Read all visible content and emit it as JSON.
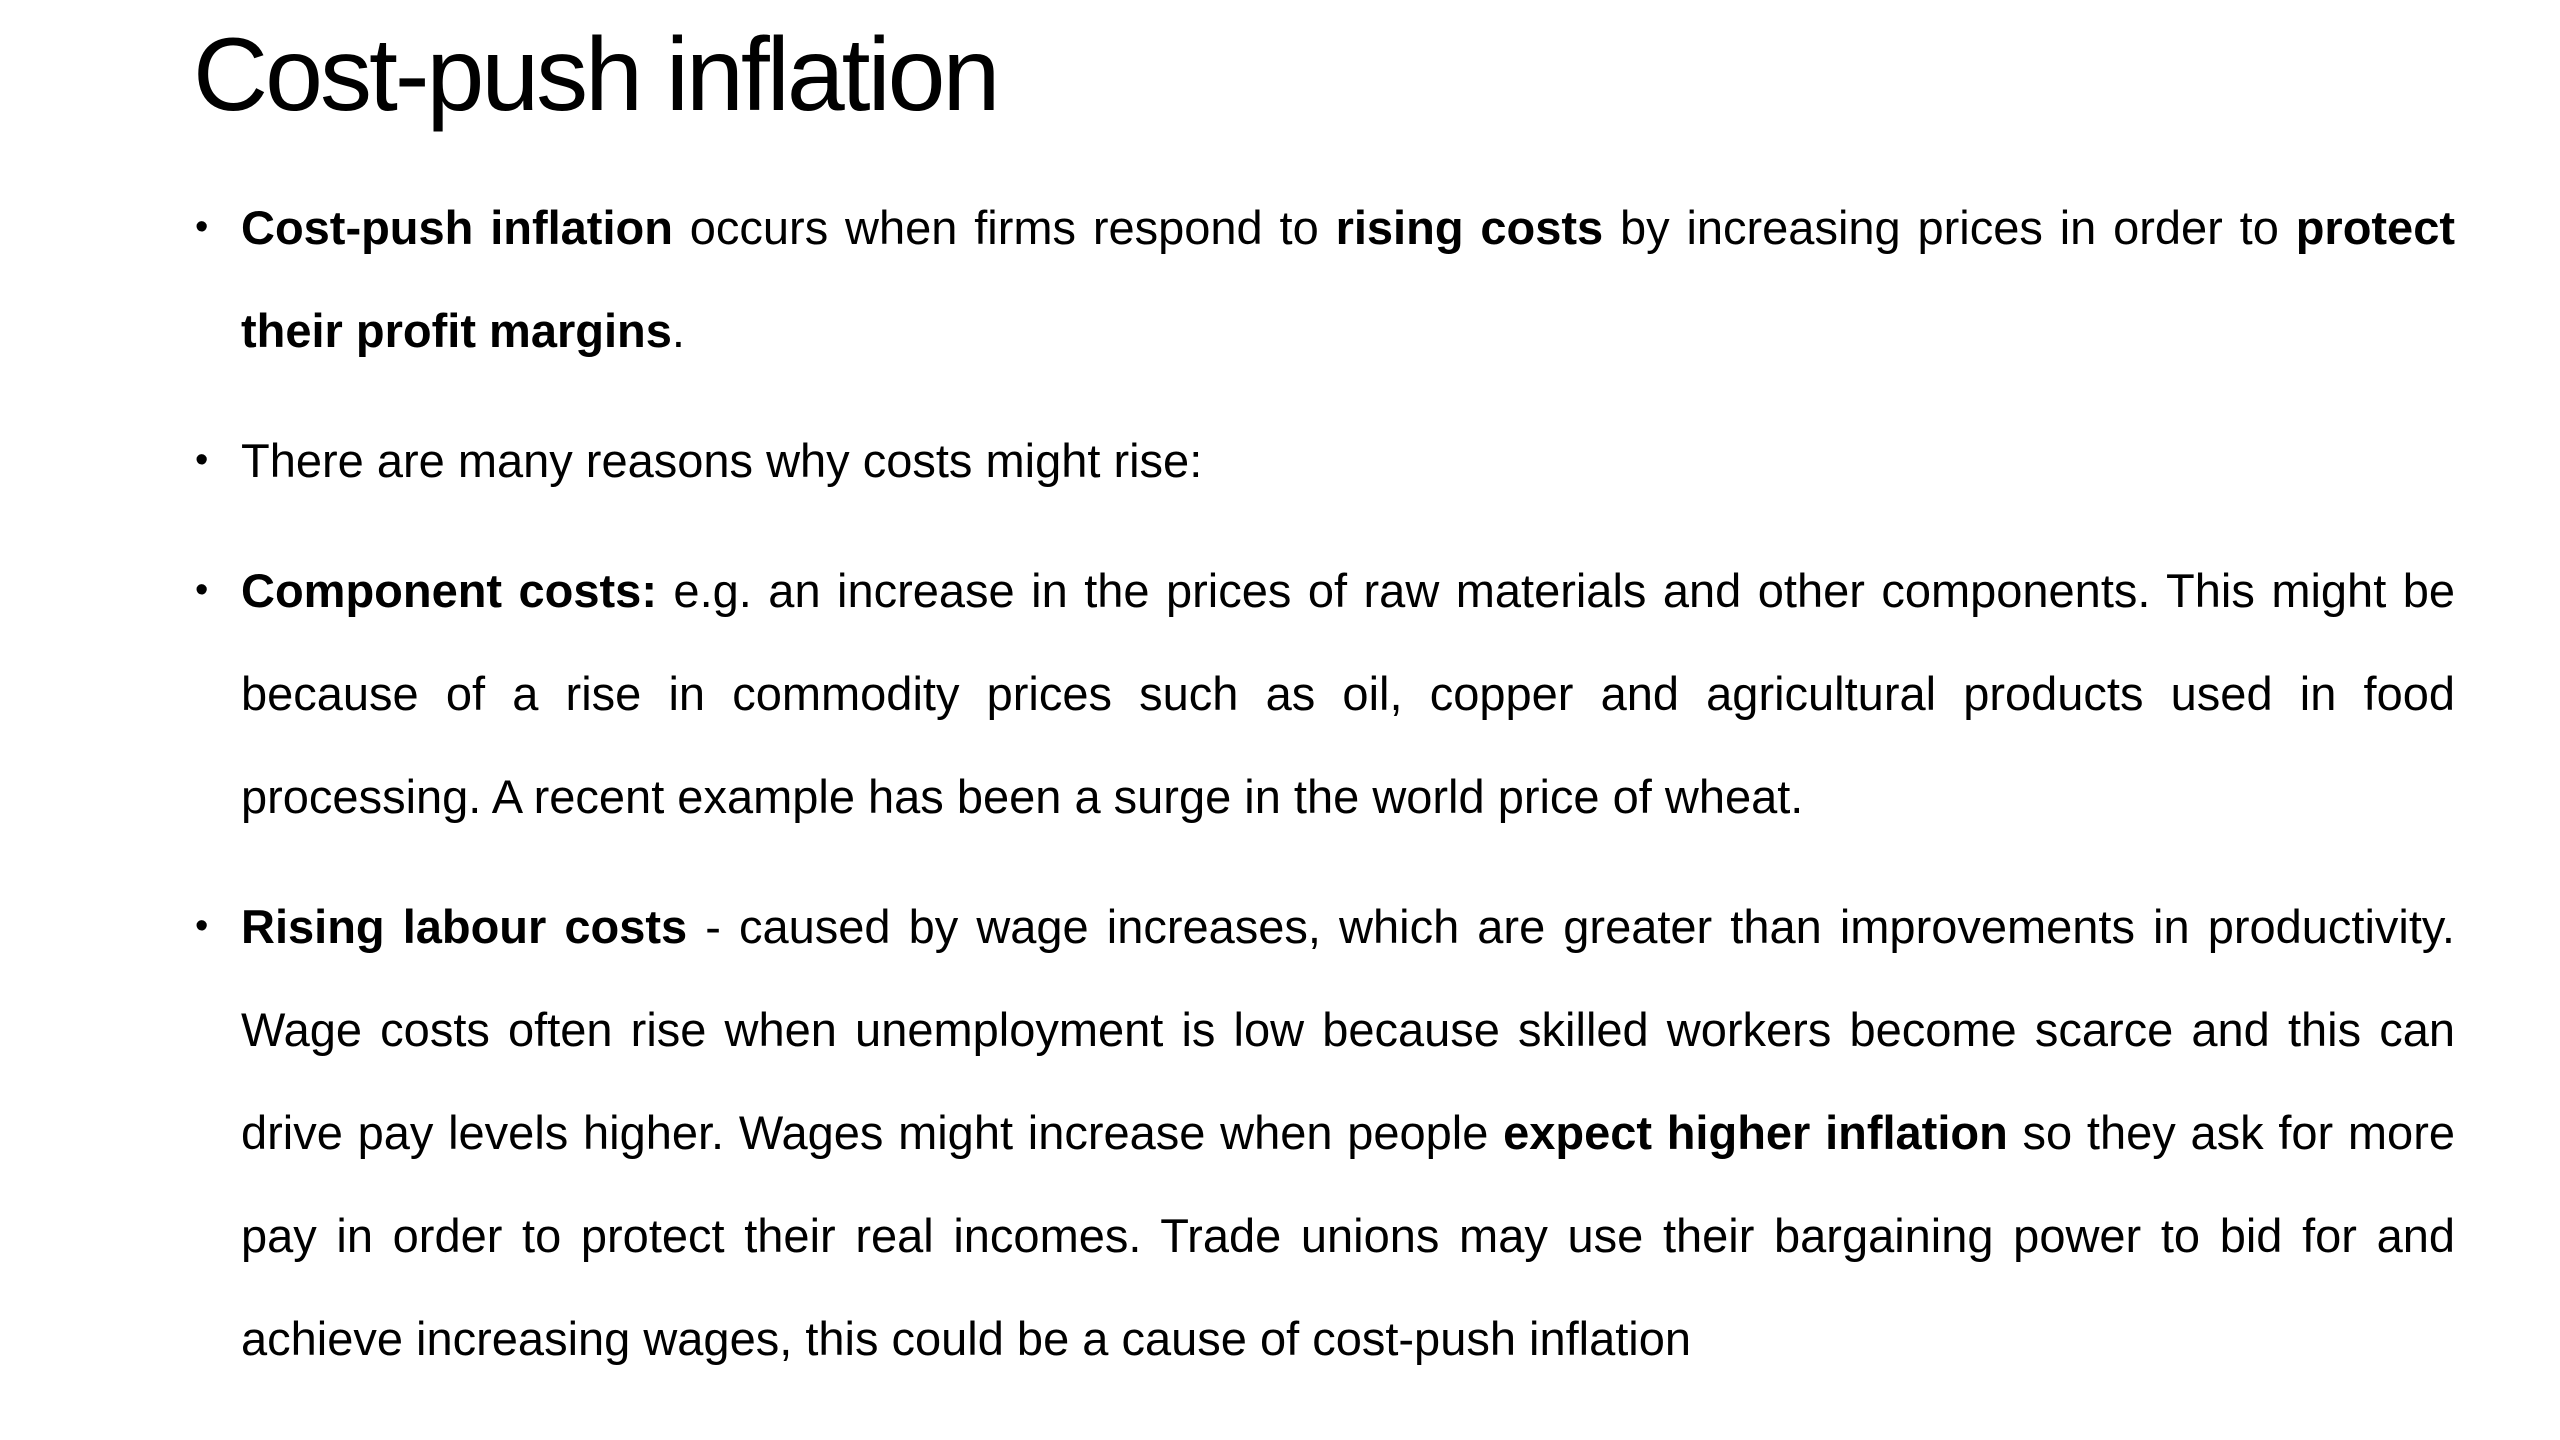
{
  "slide": {
    "title": "Cost-push inflation",
    "bullets": [
      {
        "runs": [
          {
            "text": "Cost-push inflation",
            "bold": true
          },
          {
            "text": " occurs when firms respond to ",
            "bold": false
          },
          {
            "text": "rising costs",
            "bold": true
          },
          {
            "text": " by increasing prices in order to ",
            "bold": false
          },
          {
            "text": "protect their profit margins",
            "bold": true
          },
          {
            "text": ".",
            "bold": false
          }
        ]
      },
      {
        "runs": [
          {
            "text": "There are many reasons why costs might rise:",
            "bold": false
          }
        ]
      },
      {
        "runs": [
          {
            "text": "Component costs:",
            "bold": true
          },
          {
            "text": " e.g. an increase in the prices of raw materials and other components. This might be because of a rise in commodity prices such as oil, copper and agricultural products used in food processing. A recent example has been a surge in the world price of wheat.",
            "bold": false
          }
        ]
      },
      {
        "runs": [
          {
            "text": "Rising labour costs",
            "bold": true
          },
          {
            "text": " - caused by wage increases, which are greater than improvements in productivity. Wage costs often rise when unemployment is low because skilled workers become scarce and this can drive pay levels higher. Wages might increase when people ",
            "bold": false
          },
          {
            "text": "expect higher inflation",
            "bold": true
          },
          {
            "text": " so they ask for more pay in order to protect their real incomes. Trade unions may use their bargaining power to bid for and achieve increasing wages, this could be a cause of cost-push inflation",
            "bold": false
          }
        ]
      }
    ]
  }
}
